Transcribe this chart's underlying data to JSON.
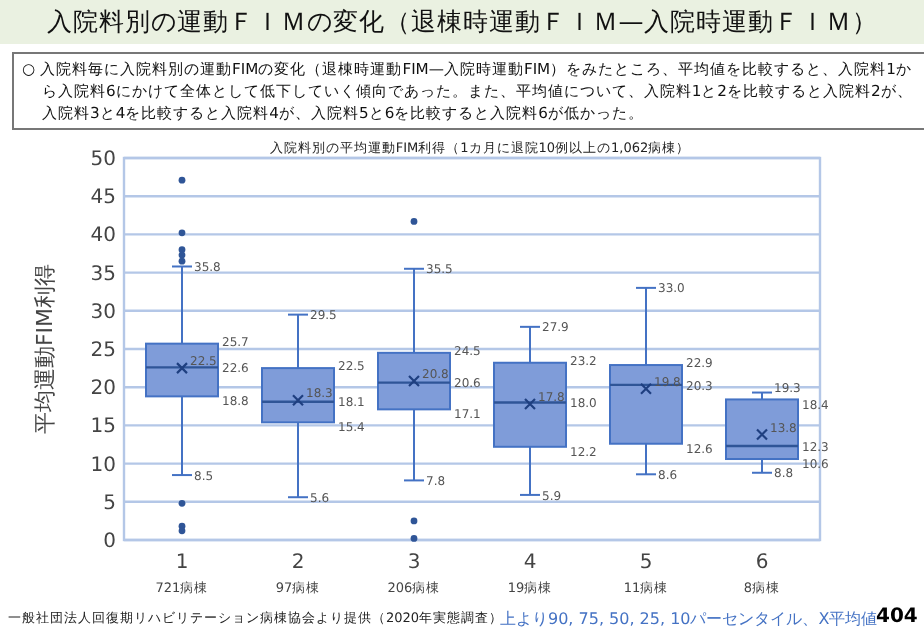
{
  "chart_data": {
    "type": "box",
    "title": "入院料別の運動ＦＩＭの変化（退棟時運動ＦＩＭ—入院時運動ＦＩＭ）",
    "subtitle": "○ 入院料毎に入院料別の運動FIMの変化（退棟時運動FIM—入院時運動FIM）をみたところ、平均値を比較すると、入院料1から入院料6にかけて全体として低下していく傾向であった。また、平均値について、入院料1と2を比較すると入院料2が、入院料3と4を比較すると入院料4が、入院料5と6を比較すると入院料6が低かった。",
    "annotations": [
      "入院料別の平均運動FIM利得（1カ月に退院10例以上の1,062病棟）",
      "一般社団法人回復期リハビリテーション病棟協会より提供（2020年実態調査）",
      "上より90, 75, 50, 25, 10パーセンタイル、X平均値",
      "404",
      "35.8",
      "25.7",
      "22.6",
      "22.5",
      "18.8",
      "8.5",
      "29.5",
      "22.5",
      "18.1",
      "18.3",
      "15.4",
      "5.6",
      "35.5",
      "24.5",
      "20.6",
      "20.8",
      "17.1",
      "7.8",
      "27.9",
      "23.2",
      "18.0",
      "17.8",
      "12.2",
      "5.9",
      "33.0",
      "22.9",
      "20.3",
      "19.8",
      "12.6",
      "8.6",
      "19.3",
      "18.4",
      "12.3",
      "13.8",
      "10.6",
      "8.8"
    ],
    "ylabel": "平均運動FIM利得",
    "categories": [
      "1\n721病棟",
      "2\n97病棟",
      "3\n206病棟",
      "4\n19病棟",
      "5\n11病棟",
      "6\n8病棟"
    ],
    "color": "#7f9cd9",
    "boxes": [
      {
        "low": 8.5,
        "q1": 18.8,
        "median": 22.6,
        "q3": 25.7,
        "high": 35.8,
        "mean": 22.5,
        "outliers": [
          47.1,
          40.2,
          38.0,
          37.3,
          36.5,
          4.8,
          1.8,
          1.2
        ]
      },
      {
        "low": 5.6,
        "q1": 15.4,
        "median": 18.1,
        "q3": 22.5,
        "high": 29.5,
        "mean": 18.3
      },
      {
        "low": 7.8,
        "q1": 17.1,
        "median": 20.6,
        "q3": 24.5,
        "high": 35.5,
        "mean": 20.8,
        "outliers": [
          41.7,
          2.5,
          0.2
        ]
      },
      {
        "low": 5.9,
        "q1": 12.2,
        "median": 18.0,
        "q3": 23.2,
        "high": 27.9,
        "mean": 17.8
      },
      {
        "low": 8.6,
        "q1": 12.6,
        "median": 20.3,
        "q3": 22.9,
        "high": 33.0,
        "mean": 19.8
      },
      {
        "low": 8.8,
        "q1": 10.6,
        "median": 12.3,
        "q3": 18.4,
        "high": 19.3,
        "mean": 13.8
      }
    ],
    "ylim": [
      0,
      50
    ],
    "yticks": [
      0,
      5,
      10,
      15,
      20,
      25,
      30,
      35,
      40,
      45,
      50
    ],
    "grid": "y"
  }
}
